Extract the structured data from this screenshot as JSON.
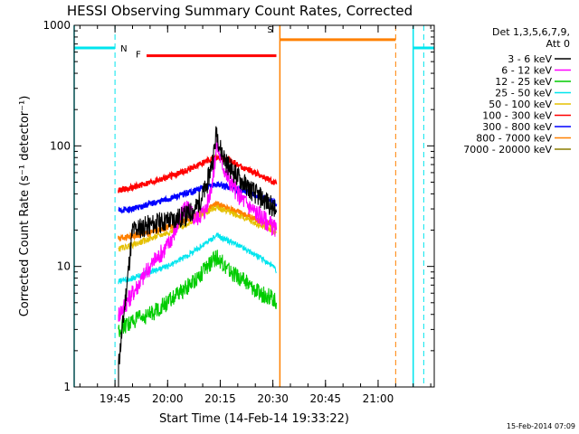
{
  "chart_data": {
    "type": "line",
    "title": "HESSI Observing Summary Count Rates, Corrected",
    "xlabel": "Start Time (14-Feb-14 19:33:22)",
    "ylabel": "Corrected Count Rate (s⁻¹ detector⁻¹)",
    "yscale": "log",
    "xlim": [
      "19:33:22",
      "21:16:00"
    ],
    "ylim": [
      1,
      1000
    ],
    "x_ticks": [
      "19:45",
      "20:00",
      "20:15",
      "20:30",
      "20:45",
      "21:00"
    ],
    "y_ticks": [
      "1",
      "10",
      "100",
      "1000"
    ],
    "grid": false,
    "legend_position": "top-right outside plot",
    "legend_header": [
      "Det 1,3,5,6,7,9,",
      "Att 0"
    ],
    "footer_date": "15-Feb-2014 07:09",
    "series": [
      {
        "name": "3 - 6 keV",
        "color": "#000000",
        "x": [
          "19:46",
          "19:50",
          "19:55",
          "20:00",
          "20:05",
          "20:08",
          "20:11",
          "20:13",
          "20:14",
          "20:15",
          "20:17",
          "20:20",
          "20:23",
          "20:26",
          "20:29",
          "20:31"
        ],
        "y": [
          1.5,
          20,
          22,
          24,
          26,
          30,
          45,
          80,
          135,
          95,
          70,
          55,
          45,
          38,
          33,
          28
        ]
      },
      {
        "name": "6 - 12 keV",
        "color": "#ff00ff",
        "x": [
          "19:46",
          "19:50",
          "19:55",
          "20:00",
          "20:03",
          "20:05",
          "20:08",
          "20:11",
          "20:13",
          "20:14",
          "20:15",
          "20:17",
          "20:20",
          "20:24",
          "20:28",
          "20:31"
        ],
        "y": [
          4,
          6,
          10,
          15,
          22,
          32,
          25,
          30,
          55,
          105,
          80,
          55,
          40,
          30,
          24,
          20
        ]
      },
      {
        "name": "12 - 25 keV",
        "color": "#00cc00",
        "x": [
          "19:46",
          "19:50",
          "19:55",
          "20:00",
          "20:05",
          "20:10",
          "20:14",
          "20:18",
          "20:22",
          "20:26",
          "20:30",
          "20:31"
        ],
        "y": [
          3,
          3.5,
          4,
          5,
          6.5,
          9,
          12,
          9,
          7.5,
          6,
          5.5,
          5
        ]
      },
      {
        "name": "25 - 50 keV",
        "color": "#00e5ee",
        "x": [
          "19:46",
          "19:50",
          "19:55",
          "20:00",
          "20:05",
          "20:10",
          "20:14",
          "20:18",
          "20:22",
          "20:26",
          "20:30",
          "20:31"
        ],
        "y": [
          7.5,
          8,
          9,
          10,
          12,
          15,
          18,
          16,
          14,
          12,
          10,
          9
        ]
      },
      {
        "name": "50 - 100 keV",
        "color": "#e5c000",
        "x": [
          "19:46",
          "19:50",
          "19:55",
          "20:00",
          "20:05",
          "20:10",
          "20:14",
          "20:18",
          "20:22",
          "20:26",
          "20:30",
          "20:31"
        ],
        "y": [
          14,
          15,
          17,
          19,
          22,
          27,
          31,
          28,
          25,
          22,
          20,
          19
        ]
      },
      {
        "name": "100 - 300 keV",
        "color": "#ff0000",
        "x": [
          "19:46",
          "19:50",
          "19:55",
          "20:00",
          "20:05",
          "20:10",
          "20:14",
          "20:18",
          "20:22",
          "20:26",
          "20:30",
          "20:31"
        ],
        "y": [
          43,
          45,
          50,
          55,
          62,
          72,
          80,
          75,
          65,
          58,
          50,
          48
        ]
      },
      {
        "name": "300 - 800 keV",
        "color": "#0000ff",
        "x": [
          "19:46",
          "19:50",
          "19:55",
          "20:00",
          "20:05",
          "20:10",
          "20:14",
          "20:18",
          "20:22",
          "20:26",
          "20:30",
          "20:31"
        ],
        "y": [
          29,
          30,
          33,
          36,
          40,
          45,
          48,
          45,
          42,
          38,
          35,
          33
        ]
      },
      {
        "name": "800 - 7000 keV",
        "color": "#ff8000",
        "x": [
          "19:46",
          "19:50",
          "19:55",
          "20:00",
          "20:05",
          "20:10",
          "20:14",
          "20:18",
          "20:22",
          "20:26",
          "20:30",
          "20:31"
        ],
        "y": [
          17,
          18,
          19,
          21,
          24,
          28,
          33,
          30,
          27,
          24,
          22,
          21
        ]
      },
      {
        "name": "7000 - 20000 keV",
        "color": "#8b7d00",
        "x": [],
        "y": []
      }
    ],
    "annotations": [
      {
        "label": "N",
        "color": "#00e5ee",
        "bar_y": 650,
        "segments": [
          [
            "19:33:22",
            "19:45"
          ],
          [
            "21:10",
            "21:16"
          ]
        ],
        "solid_lines": [
          "19:33:22",
          "21:10"
        ],
        "dashed_lines": [
          "19:45",
          "21:13"
        ]
      },
      {
        "label": "F",
        "color": "#ff0000",
        "bar_y": 560,
        "segments": [
          [
            "19:54",
            "20:31"
          ]
        ]
      },
      {
        "label": "S",
        "color": "#ff8000",
        "bar_y": 760,
        "segments": [
          [
            "20:32",
            "21:05"
          ]
        ],
        "solid_lines": [
          "20:32"
        ],
        "dashed_lines": [
          "21:05"
        ]
      }
    ]
  }
}
